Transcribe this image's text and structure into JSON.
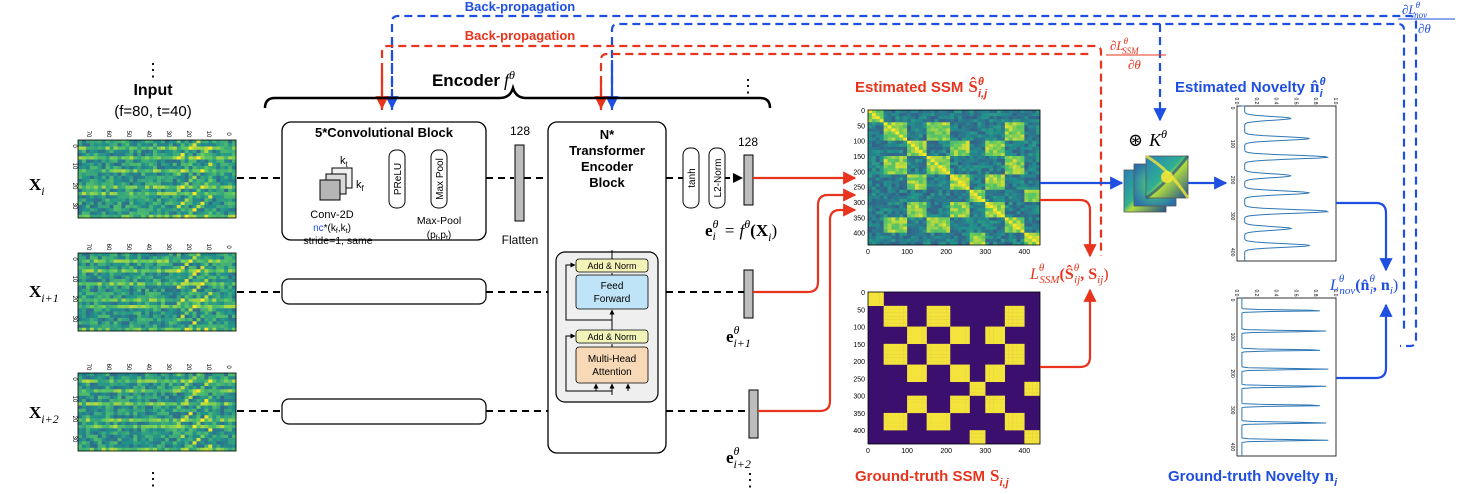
{
  "top": {
    "backprop_blue": "Back-propagation",
    "backprop_red": "Back-propagation",
    "grad_red": "∂L",
    "grad_red_sup": "θ",
    "grad_red_sub": "SSM",
    "grad_red_den": "∂θ",
    "grad_blue": "∂L",
    "grad_blue_sup": "θ",
    "grad_blue_sub": "nov",
    "grad_blue_den": "∂θ"
  },
  "input": {
    "dots": "⋮",
    "title": "Input",
    "subtitle": "(f=80, t=40)",
    "rows": [
      {
        "label": "X",
        "sub": "i"
      },
      {
        "label": "X",
        "sub": "i+1"
      },
      {
        "label": "X",
        "sub": "i+2"
      }
    ],
    "bottom_dots": "⋮",
    "x_ticks": [
      "70",
      "60",
      "50",
      "40",
      "30",
      "20",
      "10",
      "0"
    ],
    "y_ticks": [
      "0",
      "10",
      "20",
      "30"
    ]
  },
  "encoder": {
    "title": "Encoder",
    "symbol": "f",
    "sup": "θ",
    "dots": "⋮",
    "conv_block": {
      "title": "5*Convolutional Block",
      "kt": "k",
      "kt_sub": "t",
      "kf": "k",
      "kf_sub": "f",
      "conv_label": "Conv-2D",
      "nc_text": "nc",
      "nc_rest": "*(k",
      "nc_sub1": "f",
      "nc_mid": ",k",
      "nc_sub2": "t",
      "nc_end": ")",
      "stride_text": "stride=1, same",
      "prelu": "PReLU",
      "maxpool": "Max Pool",
      "maxpool_label": "Max-Pool",
      "maxpool_params": "(p",
      "maxpool_sub1": "f",
      "maxpool_mid": ",p",
      "maxpool_sub2": "t",
      "maxpool_end": ")"
    },
    "flatten_dim": "128",
    "flatten_label": "Flatten",
    "transformer": {
      "title_1": "N*",
      "title_2": "Transformer",
      "title_3": "Encoder",
      "title_4": "Block",
      "add_norm_1": "Add & Norm",
      "feed_forward_1": "Feed",
      "feed_forward_2": "Forward",
      "add_norm_2": "Add & Norm",
      "mha_1": "Multi-Head",
      "mha_2": "Attention"
    },
    "tanh": "tanh",
    "l2norm": "L2-Norm",
    "emb_dim": "128"
  },
  "embeddings": [
    {
      "e": "e",
      "sup": "θ",
      "sub": "i",
      "eq": "= f",
      "eq_sup": "θ",
      "eq_arg": "(X",
      "eq_arg_sub": "i",
      "eq_end": ")"
    },
    {
      "e": "e",
      "sup": "θ",
      "sub": "i+1"
    },
    {
      "e": "e",
      "sup": "θ",
      "sub": "i+2"
    }
  ],
  "emb_dots": "⋮",
  "ssm": {
    "est_title": "Estimated SSM",
    "est_sym": "Ŝ",
    "est_sup": "θ",
    "est_sub": "i,j",
    "gt_title": "Ground-truth SSM",
    "gt_sym": "S",
    "gt_sub": "i,j",
    "y_ticks": [
      "0",
      "50",
      "100",
      "150",
      "200",
      "250",
      "300",
      "350",
      "400"
    ],
    "x_ticks": [
      "0",
      "100",
      "200",
      "300",
      "400"
    ],
    "loss": "L",
    "loss_sup": "θ",
    "loss_sub": "SSM",
    "loss_arg": "(Ŝ",
    "loss_arg_sup": "θ",
    "loss_arg_sub": "ij",
    "loss_arg2": ", S",
    "loss_arg2_sub": "ij",
    "loss_end": ")"
  },
  "kernel": {
    "sym": "⊛",
    "k": "K",
    "sup": "θ"
  },
  "novelty": {
    "est_title": "Estimated Novelty",
    "est_sym": "n̂",
    "est_sup": "θ",
    "est_sub": "i",
    "gt_title": "Ground-truth Novelty",
    "gt_sym": "n",
    "gt_sub": "i",
    "loss": "L",
    "loss_sup": "θ",
    "loss_sub": "nov",
    "loss_arg": "(n̂",
    "loss_arg_sup": "θ",
    "loss_arg_sub": "i",
    "loss_arg2": ", n",
    "loss_arg2_sub": "i",
    "loss_end": ")",
    "x_ticks": [
      "0.0",
      "0.2",
      "0.4",
      "0.6",
      "0.8",
      "1.0"
    ],
    "y_ticks": [
      "0",
      "100",
      "200",
      "300",
      "400"
    ]
  },
  "colors": {
    "red": "#e8341c",
    "blue": "#1f4fe0",
    "ssm_bg": "#1f8a8c",
    "gt_bg": "#3b0f6e",
    "gt_fg": "#f3e33b",
    "novelty_line": "#2f77b4"
  }
}
